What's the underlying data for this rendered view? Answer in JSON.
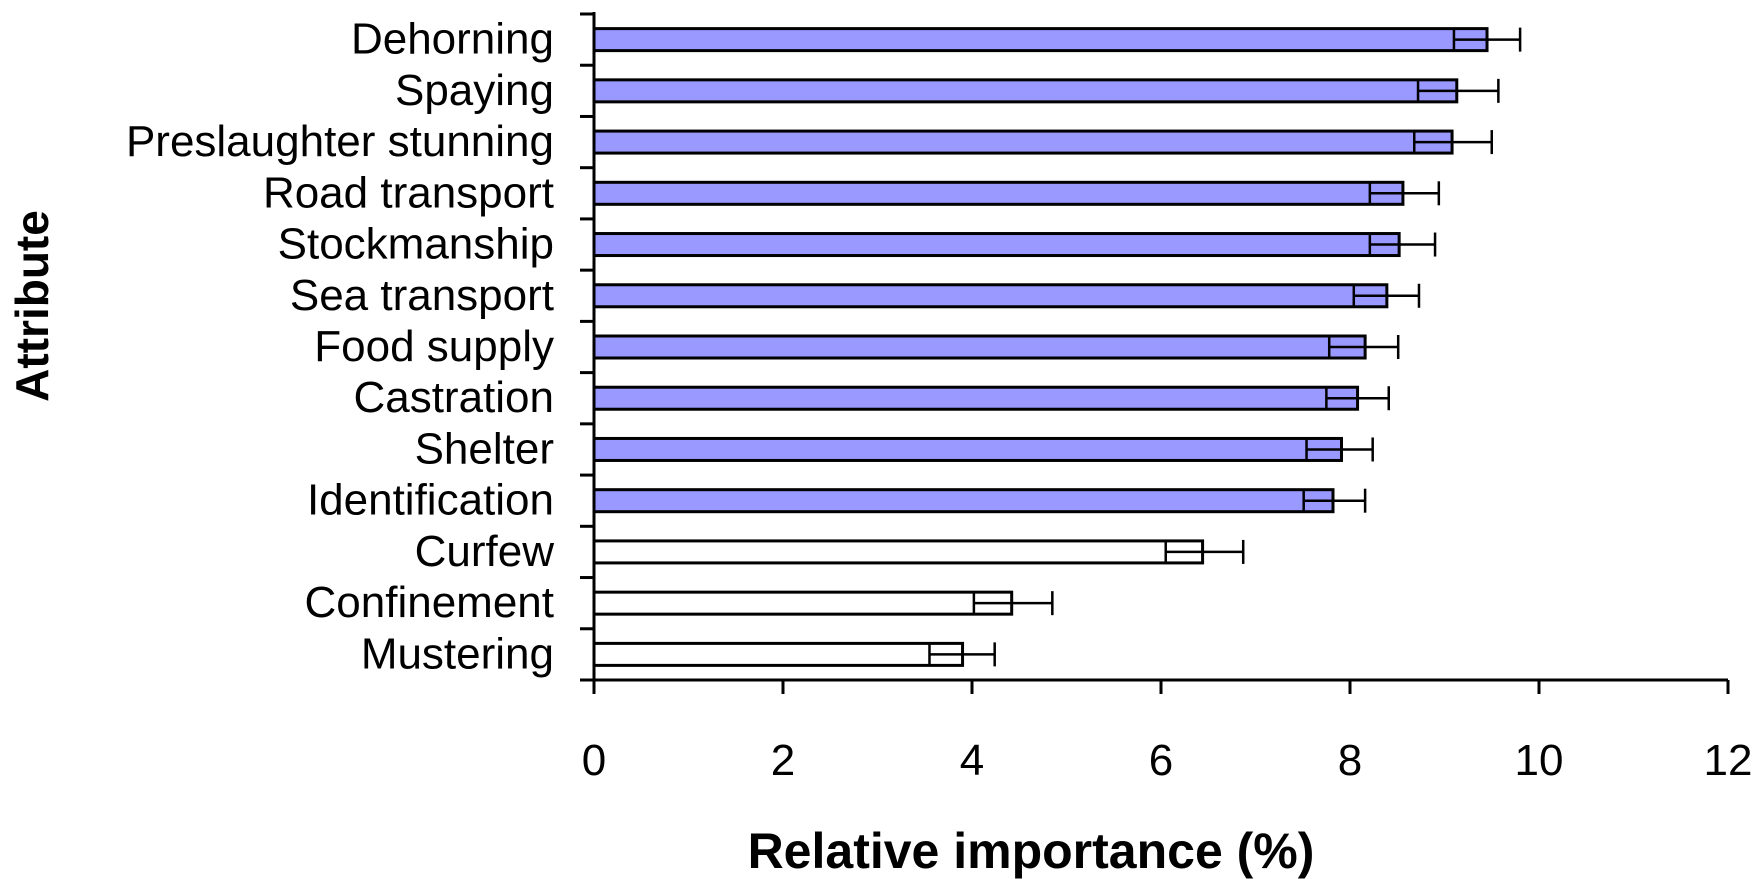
{
  "chart_data": {
    "type": "bar",
    "orientation": "horizontal",
    "title": "",
    "xlabel": "Relative importance (%)",
    "ylabel": "Attribute",
    "xlim": [
      0,
      12
    ],
    "xticks": [
      0,
      2,
      4,
      6,
      8,
      10,
      12
    ],
    "grid": false,
    "legend": "none",
    "colors": {
      "highlight": "#9999ff",
      "plain": "#ffffff",
      "edge": "#000000"
    },
    "categories": [
      "Dehorning",
      "Spaying",
      "Preslaughter stunning",
      "Road transport",
      "Stockmanship",
      "Sea transport",
      "Food supply",
      "Castration",
      "Shelter",
      "Identification",
      "Curfew",
      "Confinement",
      "Mustering"
    ],
    "values": [
      9.45,
      9.13,
      9.08,
      8.56,
      8.52,
      8.39,
      8.16,
      8.08,
      7.91,
      7.82,
      6.44,
      4.42,
      3.9
    ],
    "error_low": [
      9.1,
      8.72,
      8.68,
      8.21,
      8.21,
      8.04,
      7.78,
      7.75,
      7.54,
      7.51,
      6.05,
      4.02,
      3.55
    ],
    "error_high": [
      9.8,
      9.57,
      9.5,
      8.94,
      8.9,
      8.73,
      8.51,
      8.41,
      8.24,
      8.16,
      6.87,
      4.85,
      4.24
    ],
    "highlighted": [
      true,
      true,
      true,
      true,
      true,
      true,
      true,
      true,
      true,
      true,
      false,
      false,
      false
    ]
  }
}
